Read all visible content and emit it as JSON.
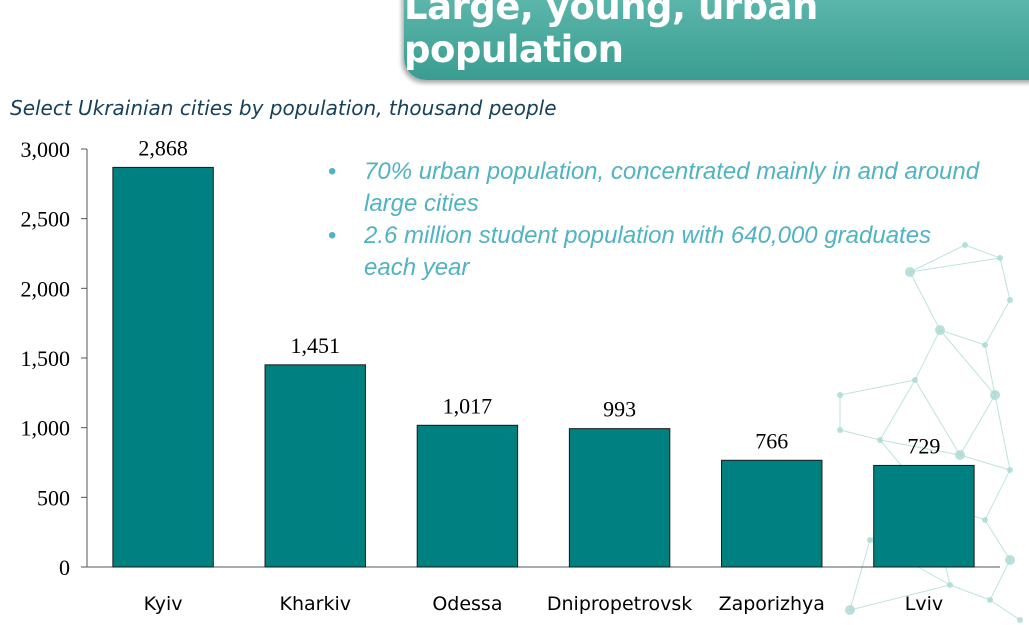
{
  "title": "Large, young, urban population",
  "subtitle": "Select Ukrainian cities by population, thousand people",
  "bullets": [
    "70% urban population, concentrated mainly in and around large cities",
    "2.6 million student population with 640,000 graduates each year"
  ],
  "colors": {
    "bar": "#008080",
    "banner": "#4aa99d",
    "bullet_text": "#4fb3c2",
    "subtitle": "#17405a"
  },
  "chart_data": {
    "type": "bar",
    "categories": [
      "Kyiv",
      "Kharkiv",
      "Odessa",
      "Dnipropetrovsk",
      "Zaporizhya",
      "Lviv"
    ],
    "values": [
      2868,
      1451,
      1017,
      993,
      766,
      729
    ],
    "data_labels": [
      "2,868",
      "1,451",
      "1,017",
      "993",
      "766",
      "729"
    ],
    "yticks": [
      0,
      500,
      1000,
      1500,
      2000,
      2500,
      3000
    ],
    "ytick_labels": [
      "0",
      "500",
      "1,000",
      "1,500",
      "2,000",
      "2,500",
      "3,000"
    ],
    "ylim": [
      0,
      3000
    ],
    "grid": false,
    "legend": "none"
  }
}
